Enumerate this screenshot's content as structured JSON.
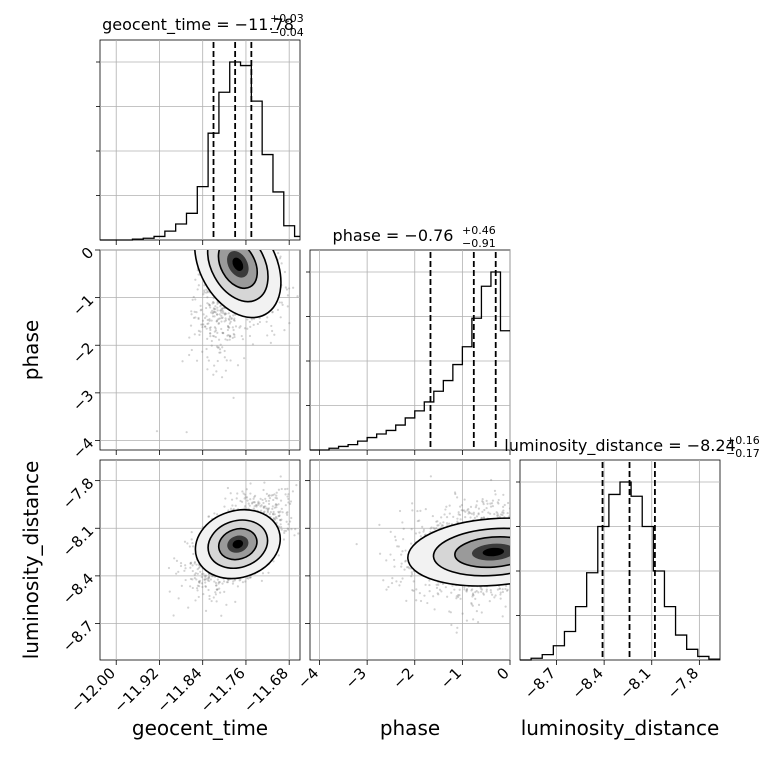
{
  "chart_data": [
    {
      "type": "histogram",
      "parameter": "geocent_time",
      "title_main": "geocent_time = −11.78",
      "title_sup": "+0.03",
      "title_sub": "−0.04",
      "range": [
        -12.03,
        -11.66
      ],
      "quantiles": [
        -11.82,
        -11.78,
        -11.75
      ],
      "bins": [
        [
          -12.03,
          0
        ],
        [
          -12.01,
          0
        ],
        [
          -11.99,
          0
        ],
        [
          -11.97,
          0.005
        ],
        [
          -11.95,
          0.01
        ],
        [
          -11.93,
          0.02
        ],
        [
          -11.91,
          0.05
        ],
        [
          -11.89,
          0.09
        ],
        [
          -11.87,
          0.15
        ],
        [
          -11.85,
          0.3
        ],
        [
          -11.83,
          0.6
        ],
        [
          -11.81,
          0.83
        ],
        [
          -11.79,
          1.0
        ],
        [
          -11.77,
          0.98
        ],
        [
          -11.75,
          0.78
        ],
        [
          -11.73,
          0.48
        ],
        [
          -11.71,
          0.27
        ],
        [
          -11.69,
          0.08
        ],
        [
          -11.67,
          0.02
        ]
      ]
    },
    {
      "type": "histogram",
      "parameter": "phase",
      "title_main": "phase = −0.76",
      "title_sup": "+0.46",
      "title_sub": "−0.91",
      "range": [
        -4.2,
        0
      ],
      "quantiles": [
        -1.67,
        -0.76,
        -0.3
      ],
      "bins": [
        [
          -4.2,
          0
        ],
        [
          -4.0,
          0
        ],
        [
          -3.8,
          0.01
        ],
        [
          -3.6,
          0.02
        ],
        [
          -3.4,
          0.03
        ],
        [
          -3.2,
          0.05
        ],
        [
          -3.0,
          0.07
        ],
        [
          -2.8,
          0.09
        ],
        [
          -2.6,
          0.11
        ],
        [
          -2.4,
          0.14
        ],
        [
          -2.2,
          0.18
        ],
        [
          -2.0,
          0.22
        ],
        [
          -1.8,
          0.27
        ],
        [
          -1.6,
          0.33
        ],
        [
          -1.4,
          0.39
        ],
        [
          -1.2,
          0.48
        ],
        [
          -1.0,
          0.58
        ],
        [
          -0.8,
          0.74
        ],
        [
          -0.6,
          0.92
        ],
        [
          -0.4,
          1.0
        ],
        [
          -0.2,
          0.67
        ]
      ]
    },
    {
      "type": "histogram",
      "parameter": "luminosity_distance",
      "title_main": "luminosity_distance = −8.24",
      "title_sup": "+0.16",
      "title_sub": "−0.17",
      "range": [
        -8.93,
        -7.67
      ],
      "quantiles": [
        -8.41,
        -8.24,
        -8.08
      ],
      "bins": [
        [
          -8.93,
          0
        ],
        [
          -8.86,
          0.01
        ],
        [
          -8.79,
          0.03
        ],
        [
          -8.72,
          0.08
        ],
        [
          -8.65,
          0.16
        ],
        [
          -8.58,
          0.3
        ],
        [
          -8.51,
          0.49
        ],
        [
          -8.44,
          0.75
        ],
        [
          -8.37,
          0.93
        ],
        [
          -8.3,
          1.0
        ],
        [
          -8.23,
          0.92
        ],
        [
          -8.16,
          0.75
        ],
        [
          -8.09,
          0.5
        ],
        [
          -8.02,
          0.3
        ],
        [
          -7.95,
          0.14
        ],
        [
          -7.88,
          0.06
        ],
        [
          -7.81,
          0.02
        ],
        [
          -7.74,
          0.005
        ]
      ]
    },
    {
      "type": "contour2d",
      "x_parameter": "geocent_time",
      "y_parameter": "phase",
      "xlim": [
        -12.03,
        -11.66
      ],
      "ylim": [
        -4.2,
        0
      ],
      "peak": [
        -11.775,
        -0.3
      ]
    },
    {
      "type": "contour2d",
      "x_parameter": "geocent_time",
      "y_parameter": "luminosity_distance",
      "xlim": [
        -12.03,
        -11.66
      ],
      "ylim": [
        -8.93,
        -7.67
      ],
      "peak": [
        -11.775,
        -8.2
      ]
    },
    {
      "type": "contour2d",
      "x_parameter": "phase",
      "y_parameter": "luminosity_distance",
      "xlim": [
        -4.2,
        0
      ],
      "ylim": [
        -8.93,
        -7.67
      ],
      "peak": [
        -0.35,
        -8.25
      ]
    }
  ],
  "axes": {
    "geocent_time": {
      "label": "geocent_time",
      "ticks": [
        -12.0,
        -11.92,
        -11.84,
        -11.76,
        -11.68
      ],
      "tick_labels": [
        "−12.00",
        "−11.92",
        "−11.84",
        "−11.76",
        "−11.68"
      ]
    },
    "phase": {
      "label": "phase",
      "ticks": [
        -4,
        -3,
        -2,
        -1,
        0
      ],
      "tick_labels": [
        "−4",
        "−3",
        "−2",
        "−1",
        "0"
      ]
    },
    "luminosity_distance": {
      "label": "luminosity_distance",
      "ticks": [
        -8.7,
        -8.4,
        -8.1,
        -7.8
      ],
      "tick_labels": [
        "−8.7",
        "−8.4",
        "−8.1",
        "−7.8"
      ]
    }
  },
  "colors": {
    "line": "#000000",
    "grid": "#b0b0b0",
    "scatter": "#7f7f7f"
  }
}
